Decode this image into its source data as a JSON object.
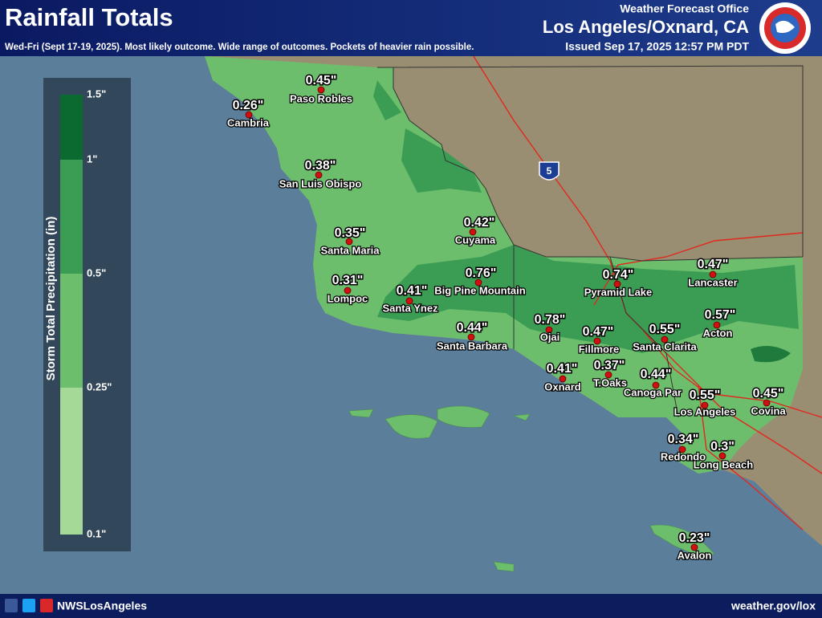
{
  "header": {
    "title": "Rainfall Totals",
    "subtitle": "Wed-Fri (Sept 17-19, 2025). Most likely outcome. Wide range of outcomes. Pockets of heavier rain possible.",
    "office": "Weather Forecast Office",
    "location": "Los Angeles/Oxnard, CA",
    "issued": "Issued Sep 17, 2025 12:57 PM PDT"
  },
  "legend": {
    "title": "Storm Total Precipitation (in)",
    "ticks": [
      "1.5\"",
      "1\"",
      "0.5\"",
      "0.25\"",
      "0.1\""
    ],
    "colors": [
      "#0b6a30",
      "#3b9d53",
      "#6dbe6c",
      "#a5d998"
    ]
  },
  "highway": "5",
  "cities": [
    {
      "name": "Paso Robles",
      "amount": "0.45\""
    },
    {
      "name": "Cambria",
      "amount": "0.26\""
    },
    {
      "name": "San Luis Obispo",
      "amount": "0.38\""
    },
    {
      "name": "Cuyama",
      "amount": "0.42\""
    },
    {
      "name": "Santa Maria",
      "amount": "0.35\""
    },
    {
      "name": "Big Pine Mountain",
      "amount": "0.76\""
    },
    {
      "name": "Lompoc",
      "amount": "0.31\""
    },
    {
      "name": "Santa Ynez",
      "amount": "0.41\""
    },
    {
      "name": "Santa Barbara",
      "amount": "0.44\""
    },
    {
      "name": "Pyramid Lake",
      "amount": "0.74\""
    },
    {
      "name": "Lancaster",
      "amount": "0.47\""
    },
    {
      "name": "Ojai",
      "amount": "0.78\""
    },
    {
      "name": "Acton",
      "amount": "0.57\""
    },
    {
      "name": "Fillmore",
      "amount": "0.47\""
    },
    {
      "name": "Santa Clarita",
      "amount": "0.55\""
    },
    {
      "name": "Oxnard",
      "amount": "0.41\""
    },
    {
      "name": "T.Oaks",
      "amount": "0.37\""
    },
    {
      "name": "Canoga Par",
      "amount": "0.44\""
    },
    {
      "name": "Los Angeles",
      "amount": "0.55\""
    },
    {
      "name": "Covina",
      "amount": "0.45\""
    },
    {
      "name": "Redondo",
      "amount": "0.34\""
    },
    {
      "name": "Long Beach",
      "amount": "0.3\""
    },
    {
      "name": "Avalon",
      "amount": "0.23\""
    }
  ],
  "footer": {
    "social": "NWSLosAngeles",
    "url": "weather.gov/lox"
  }
}
